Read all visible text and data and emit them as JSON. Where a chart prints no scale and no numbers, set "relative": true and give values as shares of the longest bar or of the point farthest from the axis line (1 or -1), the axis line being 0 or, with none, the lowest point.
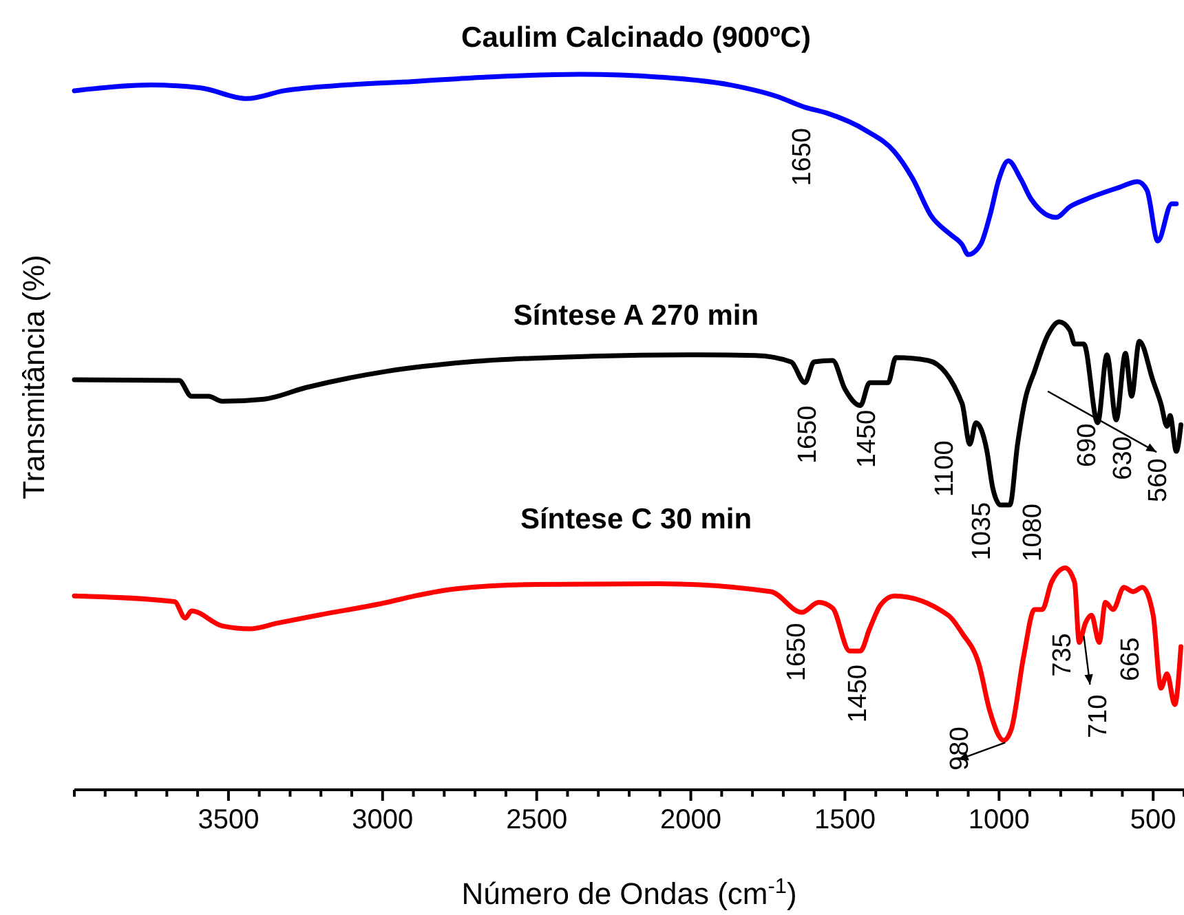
{
  "chart_data": {
    "type": "line",
    "relative": true,
    "xlabel": "Número de Ondas (cm$^{-1}$)",
    "ylabel": "Transmitância (%)",
    "xlim": [
      4000,
      400
    ],
    "xticks": [
      3500,
      3000,
      2500,
      2000,
      1500,
      1000,
      500
    ],
    "grid": false,
    "legend": false,
    "marker": "none",
    "line_style": "solid",
    "series": [
      {
        "name": "Caulim Calcinado (900ºC)",
        "color": "#0000ff",
        "x": [
          4000,
          3750,
          3590,
          3440,
          3320,
          3120,
          2900,
          2670,
          2360,
          2100,
          1870,
          1720,
          1630,
          1560,
          1430,
          1340,
          1280,
          1220,
          1160,
          1120,
          1100,
          1060,
          1030,
          1000,
          970,
          930,
          895,
          815,
          770,
          720,
          610,
          550,
          520,
          485,
          440,
          425
        ],
        "values": [
          0.977,
          0.985,
          0.981,
          0.966,
          0.977,
          0.985,
          0.99,
          0.996,
          1,
          0.996,
          0.985,
          0.969,
          0.954,
          0.946,
          0.921,
          0.892,
          0.854,
          0.802,
          0.777,
          0.762,
          0.748,
          0.762,
          0.802,
          0.854,
          0.879,
          0.854,
          0.825,
          0.8,
          0.815,
          0.825,
          0.842,
          0.85,
          0.838,
          0.767,
          0.819,
          0.819
        ]
      },
      {
        "name": "Síntese A 270 min",
        "color": "#000000",
        "x": [
          4000,
          3660,
          3620,
          3565,
          3520,
          3385,
          3250,
          2985,
          2720,
          2320,
          2010,
          1790,
          1675,
          1630,
          1600,
          1540,
          1500,
          1450,
          1420,
          1360,
          1335,
          1230,
          1120,
          1095,
          1075,
          1040,
          1020,
          995,
          965,
          940,
          915,
          885,
          840,
          805,
          770,
          755,
          725,
          680,
          650,
          620,
          590,
          570,
          545,
          500,
          475,
          455,
          445,
          425,
          410
        ],
        "values": [
          0.573,
          0.572,
          0.55,
          0.55,
          0.543,
          0.546,
          0.562,
          0.585,
          0.598,
          0.606,
          0.608,
          0.607,
          0.598,
          0.569,
          0.598,
          0.6,
          0.56,
          0.537,
          0.569,
          0.569,
          0.604,
          0.6,
          0.54,
          0.483,
          0.513,
          0.475,
          0.421,
          0.398,
          0.398,
          0.483,
          0.546,
          0.585,
          0.637,
          0.654,
          0.642,
          0.623,
          0.623,
          0.513,
          0.608,
          0.517,
          0.61,
          0.55,
          0.627,
          0.571,
          0.54,
          0.508,
          0.523,
          0.473,
          0.51
        ]
      },
      {
        "name": "Síntese C 30 min",
        "color": "#ff0000",
        "x": [
          4000,
          3675,
          3640,
          3620,
          3520,
          3430,
          3340,
          3210,
          2985,
          2895,
          2760,
          2500,
          2100,
          1740,
          1640,
          1585,
          1540,
          1485,
          1450,
          1420,
          1385,
          1340,
          1165,
          1120,
          1065,
          1030,
          985,
          960,
          920,
          885,
          860,
          830,
          785,
          755,
          740,
          720,
          700,
          675,
          655,
          630,
          595,
          565,
          535,
          500,
          475,
          455,
          430,
          410
        ],
        "values": [
          0.271,
          0.263,
          0.24,
          0.25,
          0.229,
          0.225,
          0.233,
          0.244,
          0.262,
          0.271,
          0.281,
          0.287,
          0.288,
          0.277,
          0.248,
          0.262,
          0.254,
          0.194,
          0.194,
          0.225,
          0.258,
          0.271,
          0.244,
          0.219,
          0.175,
          0.11,
          0.069,
          0.085,
          0.187,
          0.252,
          0.252,
          0.29,
          0.31,
          0.29,
          0.206,
          0.233,
          0.244,
          0.206,
          0.262,
          0.252,
          0.283,
          0.277,
          0.283,
          0.244,
          0.142,
          0.162,
          0.119,
          0.2
        ]
      }
    ],
    "annotations": [
      "1650",
      "1650",
      "1450",
      "1100",
      "1035",
      "1080",
      "690",
      "630",
      "560",
      "1650",
      "1450",
      "980",
      "735",
      "710",
      "665"
    ]
  }
}
